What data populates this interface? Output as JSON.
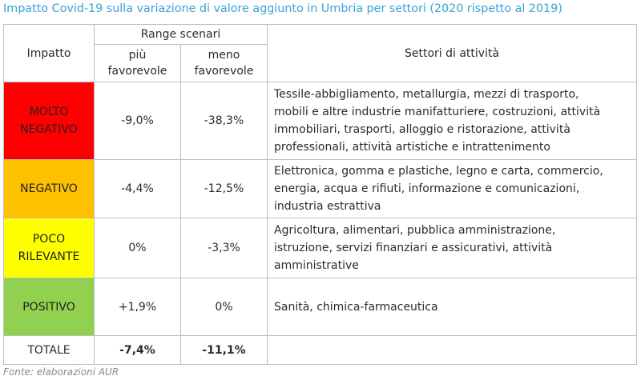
{
  "title": "Impatto Covid-19 sulla variazione di valore aggiunto in Umbria per settori (2020 rispetto al 2019)",
  "header": {
    "impatto": "Impatto",
    "range": "Range scenari",
    "piu_1": "più",
    "piu_2": "favorevole",
    "meno_1": "meno",
    "meno_2": "favorevole",
    "settori": "Settori di attività"
  },
  "rows": [
    {
      "impact_1": "MOLTO",
      "impact_2": "NEGATIVO",
      "color": "#ff0000",
      "piu": "-9,0%",
      "meno": "-38,3%",
      "sectors": [
        "Tessile-abbigliamento, metallurgia, mezzi di trasporto,",
        "mobili e altre industrie manifatturiere, costruzioni, attività",
        "immobiliari, trasporti, alloggio e ristorazione, attività",
        "professionali, attività artistiche e intrattenimento"
      ]
    },
    {
      "impact_1": "NEGATIVO",
      "color": "#ffc000",
      "piu": "-4,4%",
      "meno": "-12,5%",
      "sectors": [
        "Elettronica, gomma e plastiche, legno e carta, commercio,",
        "energia, acqua e rifiuti, informazione e comunicazioni,",
        "industria estrattiva"
      ]
    },
    {
      "impact_1": "POCO",
      "impact_2": "RILEVANTE",
      "color": "#ffff00",
      "piu": "0%",
      "meno": "-3,3%",
      "sectors": [
        "Agricoltura, alimentari, pubblica amministrazione,",
        "istruzione, servizi finanziari e assicurativi, attività",
        "amministrative"
      ]
    },
    {
      "impact_1": "POSITIVO",
      "color": "#92d050",
      "piu": "+1,9%",
      "meno": "0%",
      "sectors": [
        "Sanità, chimica-farmaceutica"
      ]
    }
  ],
  "total": {
    "label": "TOTALE",
    "piu": "-7,4%",
    "meno": "-11,1%"
  },
  "source": "Fonte: elaborazioni AUR"
}
